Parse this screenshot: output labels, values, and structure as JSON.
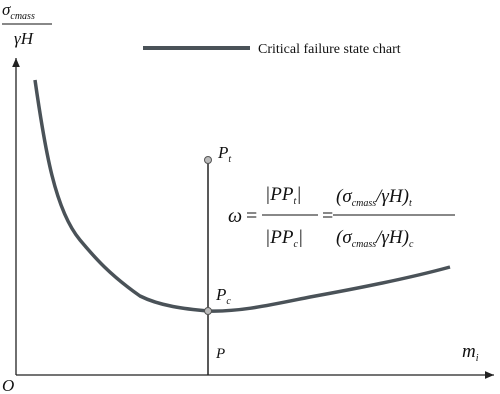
{
  "axes": {
    "y_label": {
      "numerator": {
        "base": "σ",
        "sub": "cmass"
      },
      "denominator": "γH"
    },
    "x_label": {
      "base": "m",
      "sub": "i"
    },
    "origin": "O"
  },
  "legend": {
    "label": "Critical failure state chart"
  },
  "points": [
    {
      "base": "P",
      "sub": "t"
    },
    {
      "base": "P",
      "sub": "c"
    },
    {
      "base": "P"
    }
  ],
  "formula": {
    "lhs": "ω",
    "equals": "=",
    "ratio": {
      "numerator": {
        "open": "|PP",
        "sub": "t",
        "close": "|"
      },
      "denominator": {
        "open": "|PP",
        "sub": "c",
        "close": "|"
      }
    },
    "expression": {
      "numerator": {
        "open": "(",
        "base": "σ",
        "sub": "cmass",
        "rest": "/γH)",
        "outer_sub": "t"
      },
      "denominator": {
        "open": "(",
        "base": "σ",
        "sub": "cmass",
        "rest": "/γH)",
        "outer_sub": "c"
      }
    }
  }
}
